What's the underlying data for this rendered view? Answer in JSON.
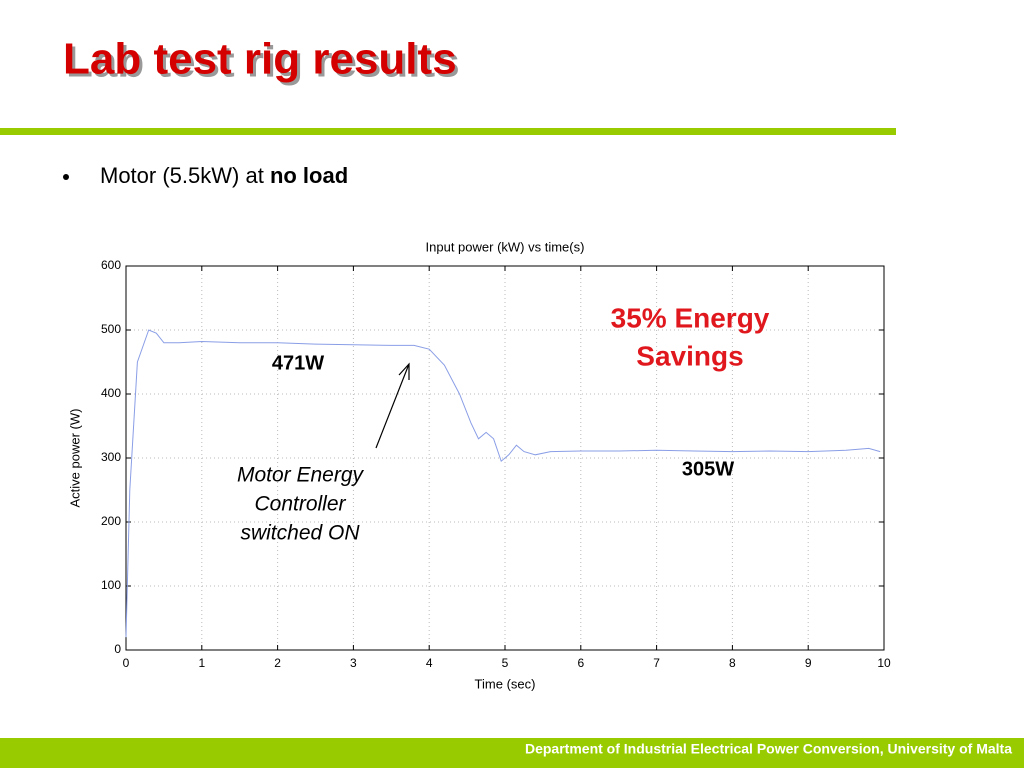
{
  "header": {
    "title": "Lab test rig results"
  },
  "bullet": {
    "text": "Motor (5.5kW) at",
    "emphasis": "no load"
  },
  "chart_data": {
    "type": "line",
    "title": "Input power (kW) vs time(s)",
    "x_label": "Time (sec)",
    "y_label": "Active power (W)",
    "x": [
      0,
      0.05,
      0.15,
      0.3,
      0.4,
      0.5,
      0.7,
      1,
      1.5,
      2,
      2.5,
      3,
      3.5,
      3.8,
      4.0,
      4.2,
      4.4,
      4.55,
      4.65,
      4.75,
      4.85,
      4.95,
      5.05,
      5.15,
      5.25,
      5.4,
      5.6,
      6,
      6.5,
      7,
      7.5,
      8,
      8.5,
      9,
      9.5,
      9.8,
      9.95
    ],
    "values": [
      20,
      250,
      450,
      500,
      495,
      480,
      480,
      482,
      480,
      480,
      478,
      477,
      476,
      476,
      470,
      445,
      400,
      355,
      330,
      340,
      330,
      295,
      305,
      320,
      310,
      305,
      310,
      311,
      311,
      312,
      311,
      310,
      311,
      310,
      312,
      315,
      310
    ],
    "color": "#8a9ee6",
    "xlim": [
      0,
      10
    ],
    "xticks": [
      0,
      1,
      2,
      3,
      4,
      5,
      6,
      7,
      8,
      9,
      10
    ],
    "ylim": [
      0,
      600
    ],
    "yticks": [
      0,
      100,
      200,
      300,
      400,
      500,
      600
    ],
    "grid": true,
    "annotations": [
      {
        "text": "471W"
      },
      {
        "text": "305W"
      },
      {
        "lines": [
          "35% Energy",
          "Savings"
        ]
      },
      {
        "lines": [
          "Motor Energy",
          "Controller",
          "switched ON"
        ]
      }
    ]
  },
  "footer": {
    "text": "Department of Industrial Electrical Power Conversion, University of Malta"
  }
}
